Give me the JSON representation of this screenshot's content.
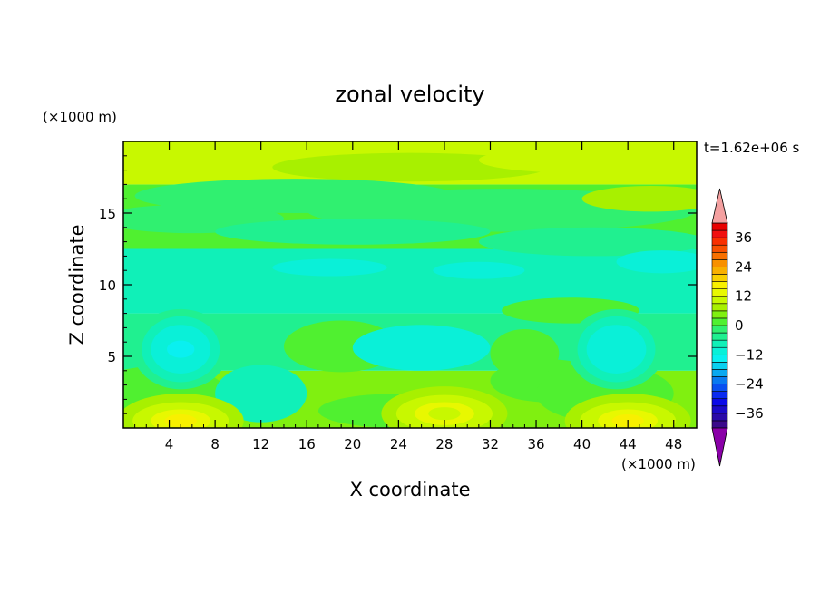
{
  "chart_data": {
    "type": "heatmap",
    "title": "zonal velocity",
    "xlabel": "X coordinate",
    "ylabel": "Z coordinate",
    "x_unit_label": "(×1000 m)",
    "y_unit_label": "(×1000 m)",
    "time_label": "t=1.62e+06 s",
    "xlim": [
      0,
      50
    ],
    "ylim": [
      0,
      20
    ],
    "x_ticks": [
      "4",
      "8",
      "12",
      "16",
      "20",
      "24",
      "28",
      "32",
      "36",
      "40",
      "44",
      "48"
    ],
    "x_tick_values": [
      4,
      8,
      12,
      16,
      20,
      24,
      28,
      32,
      36,
      40,
      44,
      48
    ],
    "y_ticks": [
      "5",
      "10",
      "15"
    ],
    "y_tick_values": [
      5,
      10,
      15
    ],
    "colorbar": {
      "levels": [
        -42,
        -39,
        -36,
        -33,
        -30,
        -27,
        -24,
        -21,
        -18,
        -15,
        -12,
        -9,
        -6,
        -3,
        0,
        3,
        6,
        9,
        12,
        15,
        18,
        21,
        24,
        27,
        30,
        33,
        36,
        39,
        42
      ],
      "labels": [
        "36",
        "24",
        "12",
        "0",
        "−12",
        "−24",
        "−36"
      ],
      "label_values": [
        36,
        24,
        12,
        0,
        -12,
        -24,
        -36
      ],
      "under_color": "#8a00a8",
      "over_color": "#f4a0a0"
    },
    "bands": [
      {
        "z": [
          0,
          4
        ],
        "approx_value": 4
      },
      {
        "z": [
          4,
          8
        ],
        "approx_value": -6
      },
      {
        "z": [
          8,
          12.5
        ],
        "approx_value": -9
      },
      {
        "z": [
          12.5,
          17
        ],
        "approx_value": 2
      },
      {
        "z": [
          17,
          20
        ],
        "approx_value": 9
      }
    ],
    "features": [
      {
        "label": "low",
        "x": 5,
        "z": 5.5,
        "value": -15
      },
      {
        "label": "low",
        "x": 43,
        "z": 5.5,
        "value": -12
      },
      {
        "label": "high",
        "x": 5,
        "z": 0.5,
        "value": 15
      },
      {
        "label": "high",
        "x": 44,
        "z": 0.5,
        "value": 15
      },
      {
        "label": "high",
        "x": 28,
        "z": 1,
        "value": 9
      }
    ]
  }
}
